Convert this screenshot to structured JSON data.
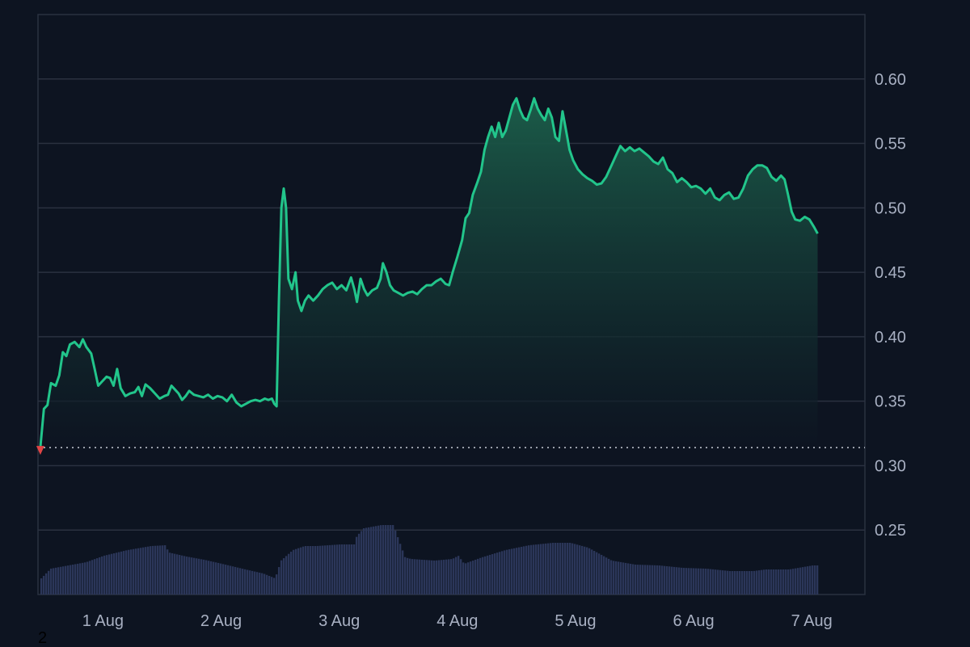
{
  "chart_data": {
    "type": "area",
    "ylim": [
      0.2,
      0.65
    ],
    "y_ticks": [
      "0.60",
      "0.55",
      "0.50",
      "0.45",
      "0.40",
      "0.35",
      "0.30",
      "0.25"
    ],
    "y_tick_values": [
      0.6,
      0.55,
      0.5,
      0.45,
      0.4,
      0.35,
      0.3,
      0.25
    ],
    "x_ticks": [
      "1 Aug",
      "2 Aug",
      "3 Aug",
      "4 Aug",
      "5 Aug",
      "6 Aug",
      "7 Aug"
    ],
    "x_range_days": [
      0.45,
      7.45
    ],
    "baseline_value": 0.314,
    "grid": true,
    "colors": {
      "line": "#22c58b",
      "area_top": "#1b5c49",
      "area_bottom": "#0d1421",
      "volume": "#2b3659",
      "baseline_marker": "#e04545",
      "grid": "#2a3140",
      "background": "#0d1421"
    },
    "series": [
      {
        "points": [
          [
            0.47,
            0.314
          ],
          [
            0.5,
            0.344
          ],
          [
            0.53,
            0.347
          ],
          [
            0.56,
            0.364
          ],
          [
            0.6,
            0.362
          ],
          [
            0.63,
            0.37
          ],
          [
            0.66,
            0.388
          ],
          [
            0.69,
            0.385
          ],
          [
            0.72,
            0.394
          ],
          [
            0.76,
            0.396
          ],
          [
            0.8,
            0.392
          ],
          [
            0.83,
            0.398
          ],
          [
            0.86,
            0.392
          ],
          [
            0.9,
            0.387
          ],
          [
            0.93,
            0.375
          ],
          [
            0.96,
            0.362
          ],
          [
            1.0,
            0.366
          ],
          [
            1.03,
            0.369
          ],
          [
            1.06,
            0.368
          ],
          [
            1.09,
            0.362
          ],
          [
            1.12,
            0.375
          ],
          [
            1.15,
            0.36
          ],
          [
            1.19,
            0.354
          ],
          [
            1.23,
            0.356
          ],
          [
            1.27,
            0.357
          ],
          [
            1.3,
            0.361
          ],
          [
            1.33,
            0.354
          ],
          [
            1.36,
            0.363
          ],
          [
            1.4,
            0.36
          ],
          [
            1.44,
            0.356
          ],
          [
            1.48,
            0.352
          ],
          [
            1.52,
            0.354
          ],
          [
            1.55,
            0.355
          ],
          [
            1.58,
            0.362
          ],
          [
            1.61,
            0.359
          ],
          [
            1.64,
            0.356
          ],
          [
            1.67,
            0.351
          ],
          [
            1.7,
            0.354
          ],
          [
            1.73,
            0.358
          ],
          [
            1.77,
            0.355
          ],
          [
            1.81,
            0.354
          ],
          [
            1.85,
            0.353
          ],
          [
            1.89,
            0.355
          ],
          [
            1.93,
            0.352
          ],
          [
            1.97,
            0.354
          ],
          [
            2.01,
            0.353
          ],
          [
            2.05,
            0.35
          ],
          [
            2.09,
            0.355
          ],
          [
            2.13,
            0.349
          ],
          [
            2.17,
            0.346
          ],
          [
            2.21,
            0.348
          ],
          [
            2.25,
            0.35
          ],
          [
            2.29,
            0.351
          ],
          [
            2.33,
            0.35
          ],
          [
            2.37,
            0.352
          ],
          [
            2.4,
            0.351
          ],
          [
            2.43,
            0.352
          ],
          [
            2.45,
            0.348
          ],
          [
            2.47,
            0.346
          ],
          [
            2.49,
            0.43
          ],
          [
            2.51,
            0.5
          ],
          [
            2.53,
            0.515
          ],
          [
            2.55,
            0.5
          ],
          [
            2.57,
            0.445
          ],
          [
            2.6,
            0.437
          ],
          [
            2.63,
            0.45
          ],
          [
            2.65,
            0.428
          ],
          [
            2.68,
            0.42
          ],
          [
            2.71,
            0.428
          ],
          [
            2.74,
            0.432
          ],
          [
            2.78,
            0.428
          ],
          [
            2.82,
            0.432
          ],
          [
            2.86,
            0.437
          ],
          [
            2.9,
            0.44
          ],
          [
            2.94,
            0.442
          ],
          [
            2.98,
            0.437
          ],
          [
            3.02,
            0.44
          ],
          [
            3.06,
            0.436
          ],
          [
            3.1,
            0.446
          ],
          [
            3.13,
            0.436
          ],
          [
            3.15,
            0.427
          ],
          [
            3.18,
            0.445
          ],
          [
            3.21,
            0.437
          ],
          [
            3.24,
            0.432
          ],
          [
            3.28,
            0.436
          ],
          [
            3.32,
            0.438
          ],
          [
            3.35,
            0.445
          ],
          [
            3.37,
            0.457
          ],
          [
            3.4,
            0.45
          ],
          [
            3.43,
            0.44
          ],
          [
            3.46,
            0.436
          ],
          [
            3.5,
            0.434
          ],
          [
            3.54,
            0.432
          ],
          [
            3.58,
            0.434
          ],
          [
            3.62,
            0.435
          ],
          [
            3.66,
            0.433
          ],
          [
            3.7,
            0.437
          ],
          [
            3.74,
            0.44
          ],
          [
            3.78,
            0.44
          ],
          [
            3.82,
            0.443
          ],
          [
            3.86,
            0.445
          ],
          [
            3.9,
            0.441
          ],
          [
            3.93,
            0.44
          ],
          [
            3.96,
            0.45
          ],
          [
            4.0,
            0.462
          ],
          [
            4.04,
            0.475
          ],
          [
            4.07,
            0.492
          ],
          [
            4.1,
            0.496
          ],
          [
            4.13,
            0.51
          ],
          [
            4.17,
            0.52
          ],
          [
            4.2,
            0.528
          ],
          [
            4.23,
            0.545
          ],
          [
            4.26,
            0.555
          ],
          [
            4.29,
            0.563
          ],
          [
            4.32,
            0.555
          ],
          [
            4.35,
            0.566
          ],
          [
            4.38,
            0.555
          ],
          [
            4.41,
            0.56
          ],
          [
            4.44,
            0.57
          ],
          [
            4.47,
            0.58
          ],
          [
            4.5,
            0.585
          ],
          [
            4.53,
            0.576
          ],
          [
            4.56,
            0.57
          ],
          [
            4.59,
            0.568
          ],
          [
            4.62,
            0.576
          ],
          [
            4.65,
            0.585
          ],
          [
            4.68,
            0.577
          ],
          [
            4.71,
            0.572
          ],
          [
            4.74,
            0.568
          ],
          [
            4.77,
            0.577
          ],
          [
            4.8,
            0.57
          ],
          [
            4.83,
            0.555
          ],
          [
            4.86,
            0.552
          ],
          [
            4.89,
            0.575
          ],
          [
            4.92,
            0.56
          ],
          [
            4.95,
            0.545
          ],
          [
            4.98,
            0.537
          ],
          [
            5.02,
            0.53
          ],
          [
            5.06,
            0.526
          ],
          [
            5.1,
            0.523
          ],
          [
            5.14,
            0.521
          ],
          [
            5.18,
            0.518
          ],
          [
            5.22,
            0.519
          ],
          [
            5.26,
            0.524
          ],
          [
            5.3,
            0.532
          ],
          [
            5.34,
            0.54
          ],
          [
            5.38,
            0.548
          ],
          [
            5.42,
            0.544
          ],
          [
            5.46,
            0.547
          ],
          [
            5.5,
            0.544
          ],
          [
            5.54,
            0.546
          ],
          [
            5.58,
            0.543
          ],
          [
            5.62,
            0.54
          ],
          [
            5.66,
            0.536
          ],
          [
            5.7,
            0.534
          ],
          [
            5.74,
            0.539
          ],
          [
            5.78,
            0.53
          ],
          [
            5.82,
            0.527
          ],
          [
            5.86,
            0.52
          ],
          [
            5.9,
            0.523
          ],
          [
            5.94,
            0.52
          ],
          [
            5.98,
            0.516
          ],
          [
            6.02,
            0.517
          ],
          [
            6.06,
            0.515
          ],
          [
            6.1,
            0.511
          ],
          [
            6.14,
            0.515
          ],
          [
            6.18,
            0.508
          ],
          [
            6.22,
            0.506
          ],
          [
            6.26,
            0.51
          ],
          [
            6.3,
            0.512
          ],
          [
            6.34,
            0.507
          ],
          [
            6.38,
            0.508
          ],
          [
            6.42,
            0.515
          ],
          [
            6.46,
            0.525
          ],
          [
            6.5,
            0.53
          ],
          [
            6.54,
            0.533
          ],
          [
            6.58,
            0.533
          ],
          [
            6.62,
            0.531
          ],
          [
            6.66,
            0.524
          ],
          [
            6.7,
            0.521
          ],
          [
            6.74,
            0.525
          ],
          [
            6.77,
            0.522
          ],
          [
            6.8,
            0.51
          ],
          [
            6.83,
            0.497
          ],
          [
            6.86,
            0.491
          ],
          [
            6.9,
            0.49
          ],
          [
            6.94,
            0.493
          ],
          [
            6.98,
            0.491
          ],
          [
            7.02,
            0.485
          ],
          [
            7.05,
            0.48
          ]
        ]
      }
    ],
    "volume": [
      [
        0.47,
        0.2
      ],
      [
        0.55,
        0.32
      ],
      [
        0.7,
        0.36
      ],
      [
        0.85,
        0.4
      ],
      [
        1.0,
        0.48
      ],
      [
        1.2,
        0.55
      ],
      [
        1.4,
        0.6
      ],
      [
        1.52,
        0.61
      ],
      [
        1.55,
        0.52
      ],
      [
        1.7,
        0.47
      ],
      [
        1.85,
        0.43
      ],
      [
        2.0,
        0.38
      ],
      [
        2.2,
        0.31
      ],
      [
        2.35,
        0.26
      ],
      [
        2.45,
        0.2
      ],
      [
        2.5,
        0.42
      ],
      [
        2.6,
        0.55
      ],
      [
        2.7,
        0.6
      ],
      [
        2.8,
        0.6
      ],
      [
        3.0,
        0.62
      ],
      [
        3.12,
        0.62
      ],
      [
        3.14,
        0.72
      ],
      [
        3.2,
        0.82
      ],
      [
        3.35,
        0.86
      ],
      [
        3.45,
        0.86
      ],
      [
        3.55,
        0.46
      ],
      [
        3.6,
        0.44
      ],
      [
        3.8,
        0.42
      ],
      [
        3.95,
        0.44
      ],
      [
        4.0,
        0.48
      ],
      [
        4.05,
        0.38
      ],
      [
        4.2,
        0.46
      ],
      [
        4.4,
        0.55
      ],
      [
        4.6,
        0.61
      ],
      [
        4.8,
        0.64
      ],
      [
        4.95,
        0.64
      ],
      [
        5.1,
        0.58
      ],
      [
        5.3,
        0.42
      ],
      [
        5.5,
        0.37
      ],
      [
        5.7,
        0.36
      ],
      [
        5.9,
        0.33
      ],
      [
        6.1,
        0.32
      ],
      [
        6.3,
        0.29
      ],
      [
        6.5,
        0.29
      ],
      [
        6.6,
        0.31
      ],
      [
        6.8,
        0.31
      ],
      [
        7.0,
        0.36
      ],
      [
        7.05,
        0.36
      ]
    ]
  },
  "footer_text": "2"
}
